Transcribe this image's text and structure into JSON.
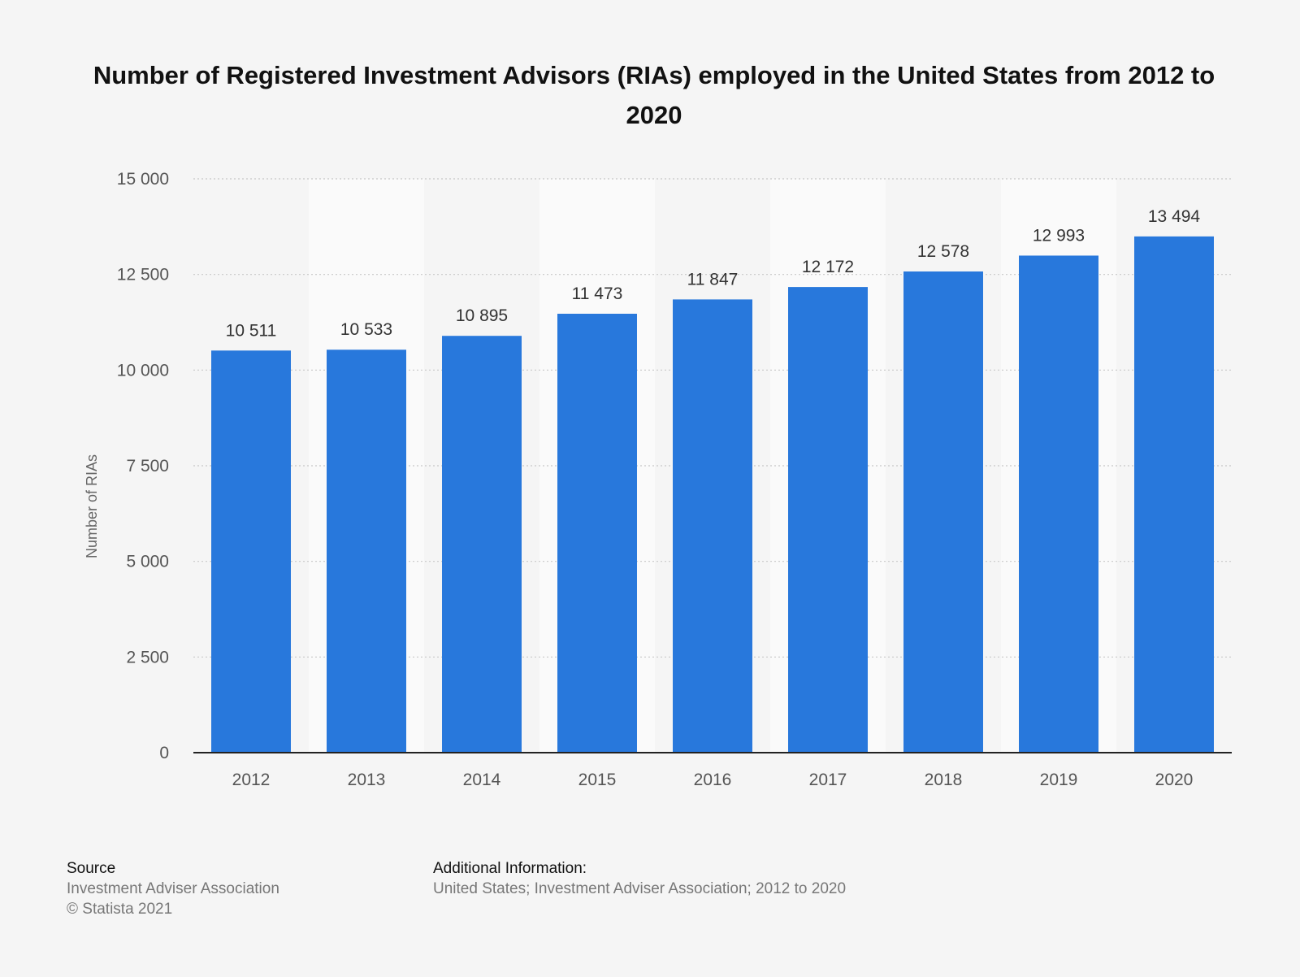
{
  "chart_data": {
    "type": "bar",
    "title": "Number of Registered Investment Advisors (RIAs) employed in the United States from 2012 to 2020",
    "xlabel": "",
    "ylabel": "Number of RIAs",
    "categories": [
      "2012",
      "2013",
      "2014",
      "2015",
      "2016",
      "2017",
      "2018",
      "2019",
      "2020"
    ],
    "values": [
      10511,
      10533,
      10895,
      11473,
      11847,
      12172,
      12578,
      12993,
      13494
    ],
    "value_labels": [
      "10 511",
      "10 533",
      "10 895",
      "11 473",
      "11 847",
      "12 172",
      "12 578",
      "12 993",
      "13 494"
    ],
    "ylim": [
      0,
      15000
    ],
    "yticks": [
      0,
      2500,
      5000,
      7500,
      10000,
      12500,
      15000
    ],
    "ytick_labels": [
      "0",
      "2 500",
      "5 000",
      "7 500",
      "10 000",
      "12 500",
      "15 000"
    ],
    "grid": true,
    "bar_color": "#2878dc"
  },
  "footer": {
    "source_heading": "Source",
    "source_name": "Investment Adviser Association",
    "copyright": "© Statista 2021",
    "info_heading": "Additional Information:",
    "info_text": "United States; Investment Adviser Association; 2012 to 2020"
  }
}
